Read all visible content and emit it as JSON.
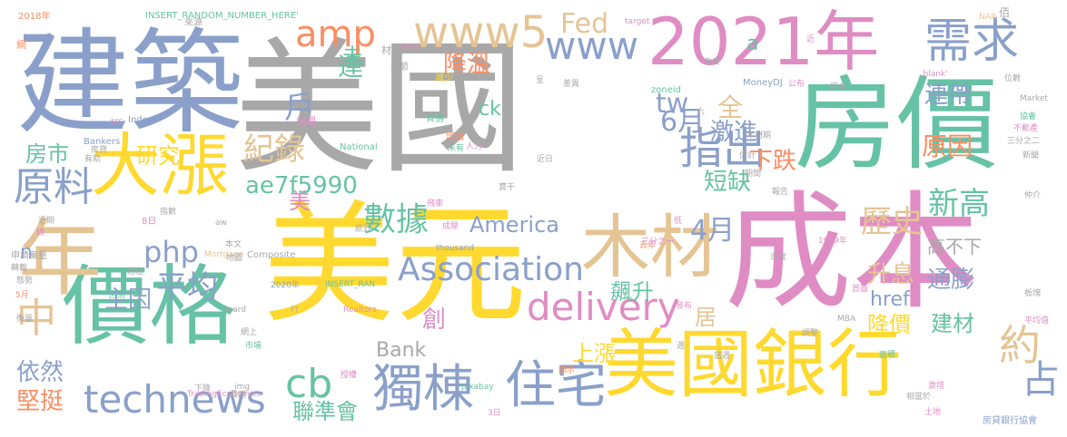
{
  "palette": {
    "gray": "#a8a8a8",
    "blue": "#8aa0ca",
    "pink": "#e08cc4",
    "green": "#66c2a5",
    "yellow": "#ffd92f",
    "tan": "#e5c494",
    "orange": "#fc8d62",
    "lime": "#a6d854"
  },
  "words": [
    {
      "text": "美國",
      "color": "gray"
    },
    {
      "text": "建築",
      "color": "blue"
    },
    {
      "text": "美元",
      "color": "yellow"
    },
    {
      "text": "成本",
      "color": "pink"
    },
    {
      "text": "房價",
      "color": "green"
    },
    {
      "text": "2021年",
      "color": "pink"
    },
    {
      "text": "價格",
      "color": "green"
    },
    {
      "text": "美國銀行",
      "color": "yellow"
    },
    {
      "text": "大漲",
      "color": "yellow"
    },
    {
      "text": "年",
      "color": "tan"
    },
    {
      "text": "木材",
      "color": "tan"
    },
    {
      "text": "technews",
      "color": "blue"
    },
    {
      "text": "獨棟",
      "color": "blue"
    },
    {
      "text": "住宅",
      "color": "blue"
    },
    {
      "text": "www5",
      "color": "tan"
    },
    {
      "text": "www",
      "color": "blue"
    },
    {
      "text": "amp",
      "color": "orange"
    },
    {
      "text": "需求",
      "color": "blue"
    },
    {
      "text": "指出",
      "color": "blue"
    },
    {
      "text": "delivery",
      "color": "pink"
    },
    {
      "text": "Association",
      "color": "blue"
    },
    {
      "text": "原料",
      "color": "blue"
    },
    {
      "text": "php",
      "color": "blue"
    },
    {
      "text": "數據",
      "color": "green"
    },
    {
      "text": "紀錄",
      "color": "tan"
    },
    {
      "text": "cb",
      "color": "green"
    },
    {
      "text": "歷史",
      "color": "tan"
    },
    {
      "text": "新高",
      "color": "green"
    },
    {
      "text": "tw",
      "color": "blue"
    },
    {
      "text": "ae7f5990",
      "color": "green"
    },
    {
      "text": "平均",
      "color": "blue"
    },
    {
      "text": "America",
      "color": "blue"
    },
    {
      "text": "Bank",
      "color": "gray"
    },
    {
      "text": "約",
      "color": "tan"
    },
    {
      "text": "占",
      "color": "blue"
    },
    {
      "text": "中",
      "color": "tan"
    },
    {
      "text": "堅挺",
      "color": "orange"
    },
    {
      "text": "依然",
      "color": "blue"
    },
    {
      "text": "主因",
      "color": "blue"
    },
    {
      "text": "房市",
      "color": "green"
    },
    {
      "text": "研究",
      "color": "yellow"
    },
    {
      "text": "6月",
      "color": "blue"
    },
    {
      "text": "4月",
      "color": "blue"
    },
    {
      "text": "激進",
      "color": "blue"
    },
    {
      "text": "全",
      "color": "tan"
    },
    {
      "text": "短缺",
      "color": "green"
    },
    {
      "text": "下跌",
      "color": "orange"
    },
    {
      "text": "原因",
      "color": "orange"
    },
    {
      "text": "連帶",
      "color": "blue"
    },
    {
      "text": "降溫",
      "color": "orange"
    },
    {
      "text": "達",
      "color": "green"
    },
    {
      "text": "未",
      "color": "green"
    },
    {
      "text": "Fed",
      "color": "tan"
    },
    {
      "text": "戶",
      "color": "blue"
    },
    {
      "text": "美",
      "color": "pink"
    },
    {
      "text": "升息",
      "color": "tan"
    },
    {
      "text": "高不下",
      "color": "gray"
    },
    {
      "text": "通膨",
      "color": "blue"
    },
    {
      "text": "href",
      "color": "blue"
    },
    {
      "text": "飆升",
      "color": "green"
    },
    {
      "text": "創",
      "color": "pink"
    },
    {
      "text": "居",
      "color": "tan"
    },
    {
      "text": "降價",
      "color": "yellow"
    },
    {
      "text": "建材",
      "color": "green"
    },
    {
      "text": "上漲",
      "color": "yellow"
    },
    {
      "text": "聯準會",
      "color": "green"
    },
    {
      "text": "ck",
      "color": "green"
    },
    {
      "text": "a",
      "color": "green"
    },
    {
      "text": "n",
      "color": "blue"
    },
    {
      "text": "2018年",
      "color": "orange"
    },
    {
      "text": "INSERT_RANDOM_NUMBER_HERE'",
      "color": "green"
    },
    {
      "text": "來源",
      "color": "gray"
    },
    {
      "text": "材料",
      "color": "gray"
    },
    {
      "text": "feet",
      "color": "pink"
    },
    {
      "text": "季節",
      "color": "gray"
    },
    {
      "text": "減少",
      "color": "yellow"
    },
    {
      "text": "坐上",
      "color": "gray"
    },
    {
      "text": "前週",
      "color": "pink"
    },
    {
      "text": "資價",
      "color": "green"
    },
    {
      "text": "Index",
      "color": "blue"
    },
    {
      "text": "src",
      "color": "pink"
    },
    {
      "text": "Bankers",
      "color": "blue"
    },
    {
      "text": "National",
      "color": "green"
    },
    {
      "text": "增加",
      "color": "orange"
    },
    {
      "text": "人力",
      "color": "pink"
    },
    {
      "text": "未有",
      "color": "green"
    },
    {
      "text": "MoneyDJ",
      "color": "blue"
    },
    {
      "text": "zoneid",
      "color": "green"
    },
    {
      "text": "公布",
      "color": "pink"
    },
    {
      "text": "綜合",
      "color": "gray"
    },
    {
      "text": "target",
      "color": "pink"
    },
    {
      "text": "NAR",
      "color": "tan"
    },
    {
      "text": "位數",
      "color": "gray"
    },
    {
      "text": "_blank'",
      "color": "pink"
    },
    {
      "text": "Market",
      "color": "gray"
    },
    {
      "text": "協會",
      "color": "green"
    },
    {
      "text": "不動產",
      "color": "pink"
    },
    {
      "text": "三分之二",
      "color": "gray"
    },
    {
      "text": "新聞",
      "color": "gray"
    },
    {
      "text": "仲介",
      "color": "gray"
    },
    {
      "text": "木材期",
      "color": "gray"
    },
    {
      "text": "估計",
      "color": "gray"
    },
    {
      "text": "期間",
      "color": "gray"
    },
    {
      "text": "報告",
      "color": "gray"
    },
    {
      "text": "速度",
      "color": "gray"
    },
    {
      "text": "1999年",
      "color": "pink"
    },
    {
      "text": "首圖",
      "color": "pink"
    },
    {
      "text": "MBA",
      "color": "gray"
    },
    {
      "text": "平均值",
      "color": "pink"
    },
    {
      "text": "面積",
      "color": "green"
    },
    {
      "text": "相當於",
      "color": "gray"
    },
    {
      "text": "土地",
      "color": "pink"
    },
    {
      "text": "激增",
      "color": "pink"
    },
    {
      "text": "房貸銀行協會",
      "color": "blue"
    },
    {
      "text": "三分之一",
      "color": "pink"
    },
    {
      "text": "低",
      "color": "pink"
    },
    {
      "text": "去年",
      "color": "orange"
    },
    {
      "text": "飛車",
      "color": "pink"
    },
    {
      "text": "近日",
      "color": "gray"
    },
    {
      "text": "thousand",
      "color": "blue"
    },
    {
      "text": "成屋",
      "color": "pink"
    },
    {
      "text": "統計",
      "color": "gray"
    },
    {
      "text": "8日",
      "color": "pink"
    },
    {
      "text": "aw",
      "color": "gray"
    },
    {
      "text": "Mortgage",
      "color": "tan"
    },
    {
      "text": "本文",
      "color": "gray"
    },
    {
      "text": "地圖",
      "color": "gray"
    },
    {
      "text": "Composite",
      "color": "gray"
    },
    {
      "text": "2020年",
      "color": "blue"
    },
    {
      "text": "INSERT_RAN",
      "color": "green"
    },
    {
      "text": "Realtors",
      "color": "pink"
    },
    {
      "text": "board",
      "color": "gray"
    },
    {
      "text": "行",
      "color": "gray"
    },
    {
      "text": "img",
      "color": "gray"
    },
    {
      "text": "pixabay",
      "color": "green"
    },
    {
      "text": "TradingEconomics",
      "color": "pink"
    },
    {
      "text": "費用",
      "color": "gray"
    },
    {
      "text": "3日",
      "color": "pink"
    },
    {
      "text": "下降",
      "color": "gray"
    },
    {
      "text": "市場",
      "color": "green"
    },
    {
      "text": "網上",
      "color": "gray"
    },
    {
      "text": "申請案量",
      "color": "gray"
    },
    {
      "text": "轉載",
      "color": "gray"
    },
    {
      "text": "態勢",
      "color": "gray"
    },
    {
      "text": "衡量",
      "color": "gray"
    },
    {
      "text": "有助",
      "color": "gray"
    },
    {
      "text": "房貸",
      "color": "gray"
    },
    {
      "text": "指數",
      "color": "gray"
    },
    {
      "text": "5月",
      "color": "orange"
    },
    {
      "text": "回落",
      "color": "green"
    },
    {
      "text": "落在",
      "color": "gray"
    },
    {
      "text": "板塊",
      "color": "gray"
    },
    {
      "text": "調整",
      "color": "gray"
    },
    {
      "text": "當週",
      "color": "gray"
    },
    {
      "text": "週",
      "color": "gray"
    },
    {
      "text": "顯示",
      "color": "orange"
    },
    {
      "text": "發布",
      "color": "pink"
    },
    {
      "text": "授權",
      "color": "pink"
    },
    {
      "text": "差異",
      "color": "gray"
    },
    {
      "text": "會實",
      "color": "gray"
    },
    {
      "text": "佰",
      "color": "gray"
    },
    {
      "text": "網",
      "color": "orange"
    },
    {
      "text": "近期",
      "color": "gray"
    },
    {
      "text": "近",
      "color": "pink"
    },
    {
      "text": "六",
      "color": "gray"
    },
    {
      "text": "呈",
      "color": "gray"
    },
    {
      "text": "寶干",
      "color": "gray"
    },
    {
      "text": "總",
      "color": "pink"
    }
  ]
}
